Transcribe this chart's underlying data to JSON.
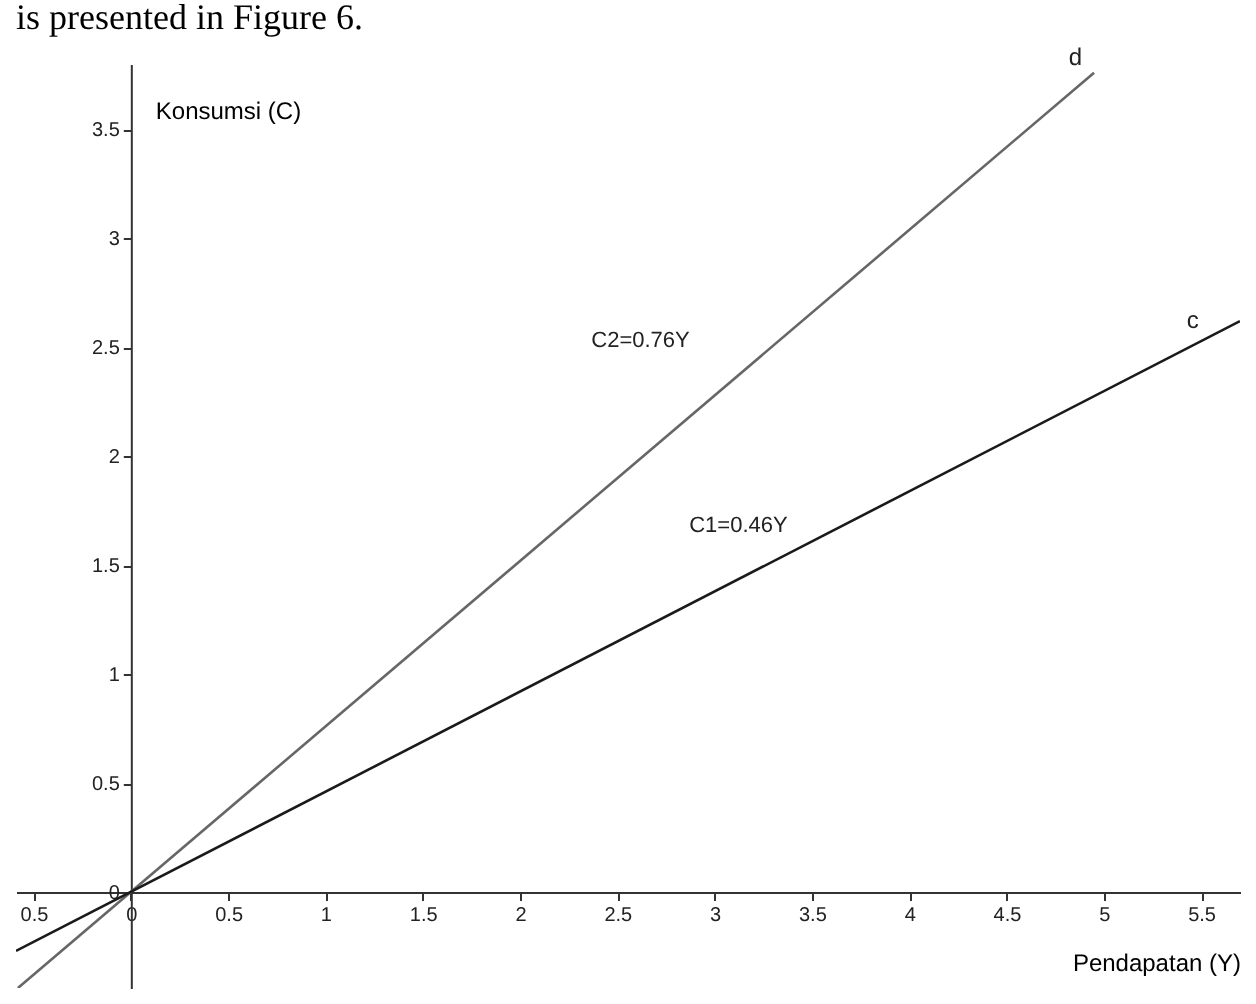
{
  "chart_data": {
    "type": "line",
    "xlabel": "Pendapatan (Y)",
    "ylabel": "Konsumsi (C)",
    "xlim": [
      -0.59,
      5.7
    ],
    "ylim": [
      -0.44,
      3.8
    ],
    "xticks": [
      {
        "value": -0.5,
        "label": "0.5"
      },
      0,
      0.5,
      1,
      1.5,
      2,
      2.5,
      3,
      3.5,
      4,
      4.5,
      5,
      5.5
    ],
    "yticks": [
      0,
      0.5,
      1,
      1.5,
      2,
      2.5,
      3,
      3.5
    ],
    "series": [
      {
        "name": "d",
        "color": "#666666",
        "x": [
          -0.58,
          4.95
        ],
        "values": [
          -0.44,
          3.76
        ]
      },
      {
        "name": "c",
        "color": "#1a1a1a",
        "x": [
          -0.59,
          5.7
        ],
        "values": [
          -0.27,
          2.62
        ]
      }
    ],
    "annotations": [
      "is presented in Figure 6.",
      "C2=0.76Y",
      "C1=0.46Y"
    ],
    "grid": false,
    "legend": false,
    "marker": "none",
    "line_style": "solid"
  }
}
